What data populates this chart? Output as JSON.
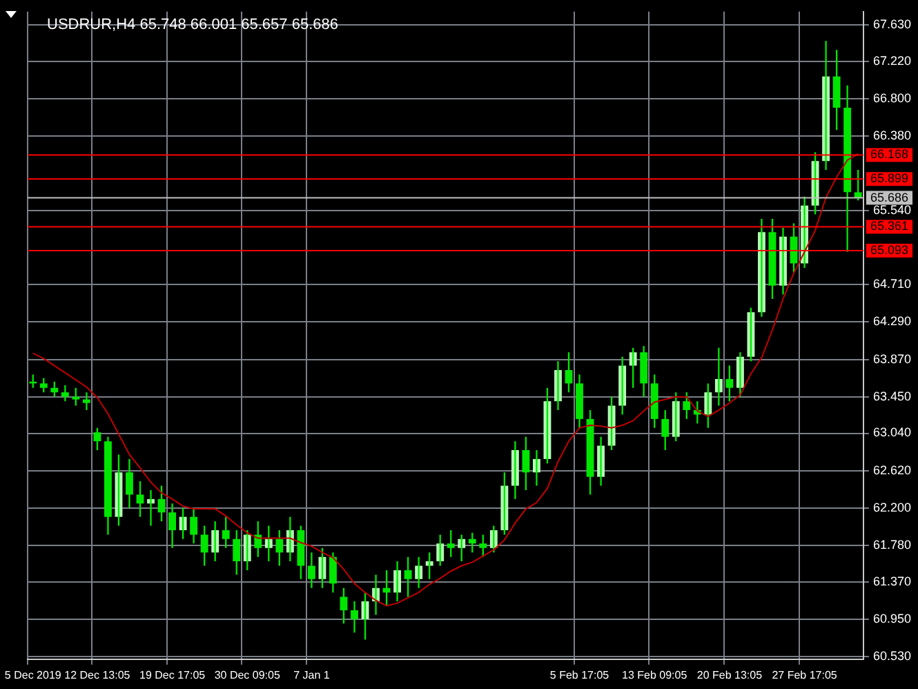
{
  "chart_data": {
    "type": "candlestick",
    "title": "USDRUR,H4 65.748 66.001 65.657 65.686",
    "categories": [
      "5 Dec 2019",
      null,
      null,
      null,
      null,
      null,
      "12 Dec 13:05",
      null,
      null,
      null,
      null,
      null,
      null,
      "19 Dec 17:05",
      null,
      null,
      null,
      null,
      null,
      null,
      "30 Dec 09:05",
      null,
      null,
      null,
      null,
      null,
      "7 Jan 1",
      null,
      null,
      null,
      null,
      null,
      null,
      null,
      null,
      null,
      null,
      null,
      null,
      null,
      null,
      null,
      null,
      null,
      null,
      null,
      null,
      null,
      null,
      null,
      null,
      "5 Feb 17:05",
      null,
      null,
      null,
      null,
      null,
      null,
      "13 Feb 09:05",
      null,
      null,
      null,
      null,
      null,
      null,
      "20 Feb 13:05",
      null,
      null,
      null,
      null,
      null,
      null,
      "27 Feb 17:05",
      null,
      null,
      null,
      null,
      null
    ],
    "series": [
      {
        "type": "candlestick",
        "color": "#00e600",
        "colors": [
          "#00e600",
          "#00e600",
          "#00e600",
          "#00e600",
          "#00e600",
          "#00e600",
          "#00e600",
          "#00e600",
          "#b3ffb3",
          "#00e600",
          "#00e600",
          "#b3ffb3",
          "#00e600",
          "#00e600",
          "#b3ffb3",
          "#00e600",
          "#00e600",
          "#b3ffb3",
          "#00e600",
          "#00e600",
          "#b3ffb3",
          "#00e600",
          "#b3ffb3",
          "#00e600",
          "#b3ffb3",
          "#00e600",
          "#00e600",
          "#b3ffb3",
          "#00e600",
          "#00e600",
          "#00e600",
          "#b3ffb3",
          "#b3ffb3",
          "#00e600",
          "#b3ffb3",
          "#00e600",
          "#b3ffb3",
          "#b3ffb3",
          "#b3ffb3",
          "#00e600",
          "#b3ffb3",
          "#00e600",
          "#00e600",
          "#b3ffb3",
          "#b3ffb3",
          "#b3ffb3",
          "#00e600",
          "#b3ffb3",
          "#b3ffb3",
          "#b3ffb3",
          "#00e600",
          "#00e600",
          "#00e600",
          "#b3ffb3",
          "#b3ffb3",
          "#b3ffb3",
          "#b3ffb3",
          "#00e600",
          "#00e600",
          "#00e600",
          "#b3ffb3",
          "#00e600",
          "#00e600",
          "#b3ffb3",
          "#b3ffb3",
          "#00e600",
          "#b3ffb3",
          "#b3ffb3",
          "#b3ffb3",
          "#00e600",
          "#b3ffb3",
          "#00e600",
          "#b3ffb3",
          "#b3ffb3",
          "#b3ffb3",
          "#00e600",
          "#00e600",
          "#00e600"
        ],
        "ohlc": [
          [
            63.62,
            63.7,
            63.55,
            63.6
          ],
          [
            63.6,
            63.66,
            63.5,
            63.55
          ],
          [
            63.55,
            63.62,
            63.45,
            63.5
          ],
          [
            63.5,
            63.58,
            63.4,
            63.45
          ],
          [
            63.45,
            63.55,
            63.35,
            63.42
          ],
          [
            63.42,
            63.5,
            63.3,
            63.38
          ],
          [
            63.05,
            63.1,
            62.85,
            62.95
          ],
          [
            62.95,
            63.0,
            61.9,
            62.1
          ],
          [
            62.1,
            62.8,
            62.0,
            62.6
          ],
          [
            62.6,
            62.75,
            62.2,
            62.35
          ],
          [
            62.35,
            62.5,
            62.1,
            62.25
          ],
          [
            62.25,
            62.4,
            62.0,
            62.3
          ],
          [
            62.3,
            62.45,
            62.05,
            62.15
          ],
          [
            62.15,
            62.25,
            61.75,
            61.95
          ],
          [
            61.95,
            62.2,
            61.85,
            62.1
          ],
          [
            62.1,
            62.2,
            61.8,
            61.9
          ],
          [
            61.9,
            62.0,
            61.55,
            61.7
          ],
          [
            61.7,
            62.05,
            61.6,
            61.95
          ],
          [
            61.95,
            62.1,
            61.75,
            61.85
          ],
          [
            61.85,
            61.95,
            61.45,
            61.6
          ],
          [
            61.6,
            61.95,
            61.5,
            61.9
          ],
          [
            61.9,
            62.05,
            61.65,
            61.75
          ],
          [
            61.75,
            62.0,
            61.6,
            61.85
          ],
          [
            61.85,
            61.95,
            61.55,
            61.7
          ],
          [
            61.7,
            62.1,
            61.6,
            61.95
          ],
          [
            61.95,
            62.0,
            61.4,
            61.55
          ],
          [
            61.55,
            61.7,
            61.3,
            61.4
          ],
          [
            61.4,
            61.75,
            61.3,
            61.65
          ],
          [
            61.65,
            61.7,
            61.25,
            61.35
          ],
          [
            61.2,
            61.3,
            60.9,
            61.05
          ],
          [
            61.05,
            61.15,
            60.8,
            60.95
          ],
          [
            60.95,
            61.25,
            60.72,
            61.15
          ],
          [
            61.15,
            61.45,
            61.0,
            61.3
          ],
          [
            61.3,
            61.5,
            61.1,
            61.25
          ],
          [
            61.25,
            61.6,
            61.15,
            61.5
          ],
          [
            61.5,
            61.65,
            61.2,
            61.4
          ],
          [
            61.4,
            61.65,
            61.3,
            61.55
          ],
          [
            61.55,
            61.7,
            61.4,
            61.6
          ],
          [
            61.6,
            61.9,
            61.55,
            61.8
          ],
          [
            61.8,
            61.95,
            61.65,
            61.75
          ],
          [
            61.75,
            61.9,
            61.6,
            61.85
          ],
          [
            61.85,
            61.92,
            61.7,
            61.8
          ],
          [
            61.8,
            61.9,
            61.65,
            61.75
          ],
          [
            61.75,
            62.0,
            61.7,
            61.95
          ],
          [
            61.95,
            62.6,
            61.9,
            62.45
          ],
          [
            62.45,
            62.95,
            62.3,
            62.85
          ],
          [
            62.85,
            63.0,
            62.4,
            62.6
          ],
          [
            62.6,
            62.85,
            62.45,
            62.75
          ],
          [
            62.75,
            63.55,
            62.7,
            63.4
          ],
          [
            63.4,
            63.85,
            63.3,
            63.75
          ],
          [
            63.75,
            63.95,
            63.5,
            63.6
          ],
          [
            63.6,
            63.7,
            63.1,
            63.2
          ],
          [
            63.2,
            63.3,
            62.35,
            62.55
          ],
          [
            62.55,
            63.0,
            62.45,
            62.9
          ],
          [
            62.9,
            63.45,
            62.85,
            63.35
          ],
          [
            63.35,
            63.9,
            63.25,
            63.8
          ],
          [
            63.8,
            64.0,
            63.55,
            63.95
          ],
          [
            63.95,
            64.02,
            63.45,
            63.6
          ],
          [
            63.6,
            63.7,
            63.1,
            63.2
          ],
          [
            63.2,
            63.3,
            62.85,
            63.0
          ],
          [
            63.0,
            63.5,
            62.95,
            63.4
          ],
          [
            63.4,
            63.5,
            63.2,
            63.3
          ],
          [
            63.3,
            63.4,
            63.15,
            63.25
          ],
          [
            63.25,
            63.6,
            63.1,
            63.5
          ],
          [
            63.5,
            64.0,
            63.35,
            63.65
          ],
          [
            63.65,
            63.8,
            63.4,
            63.55
          ],
          [
            63.55,
            63.95,
            63.45,
            63.9
          ],
          [
            63.9,
            64.45,
            63.85,
            64.4
          ],
          [
            64.4,
            65.45,
            64.35,
            65.3
          ],
          [
            65.3,
            65.45,
            64.55,
            64.7
          ],
          [
            64.7,
            65.35,
            64.6,
            65.25
          ],
          [
            65.25,
            65.4,
            64.85,
            64.95
          ],
          [
            64.95,
            65.7,
            64.9,
            65.6
          ],
          [
            65.6,
            66.2,
            65.5,
            66.1
          ],
          [
            66.1,
            67.45,
            66.0,
            67.05
          ],
          [
            67.05,
            67.35,
            66.45,
            66.7
          ],
          [
            66.7,
            66.95,
            65.08,
            65.75
          ],
          [
            65.748,
            66.001,
            65.657,
            65.686
          ]
        ]
      },
      {
        "type": "line",
        "color": "#c00000",
        "values": [
          63.94,
          63.88,
          63.8,
          63.72,
          63.64,
          63.56,
          63.44,
          63.26,
          63.03,
          62.8,
          62.65,
          62.49,
          62.37,
          62.3,
          62.22,
          62.19,
          62.19,
          62.19,
          62.11,
          62.01,
          61.92,
          61.86,
          61.86,
          61.86,
          61.86,
          61.81,
          61.77,
          61.7,
          61.64,
          61.51,
          61.35,
          61.25,
          61.16,
          61.1,
          61.13,
          61.19,
          61.25,
          61.34,
          61.41,
          61.49,
          61.55,
          61.59,
          61.66,
          61.73,
          61.84,
          62.03,
          62.19,
          62.26,
          62.42,
          62.72,
          62.95,
          63.1,
          63.13,
          63.12,
          63.1,
          63.13,
          63.18,
          63.29,
          63.39,
          63.42,
          63.45,
          63.45,
          63.29,
          63.23,
          63.3,
          63.38,
          63.47,
          63.71,
          63.89,
          64.2,
          64.55,
          64.84,
          65.08,
          65.32,
          65.69,
          65.92,
          66.11,
          66.18
        ]
      }
    ],
    "ylim": [
      60.5,
      67.78
    ],
    "yticks": [
      {
        "value": 67.63,
        "label": "67.630"
      },
      {
        "value": 67.22,
        "label": "67.220"
      },
      {
        "value": 66.8,
        "label": "66.800"
      },
      {
        "value": 66.38,
        "label": "66.380"
      },
      {
        "value": 65.54,
        "label": "65.540"
      },
      {
        "value": 64.71,
        "label": "64.710"
      },
      {
        "value": 64.29,
        "label": "64.290"
      },
      {
        "value": 63.87,
        "label": "63.870"
      },
      {
        "value": 63.45,
        "label": "63.450"
      },
      {
        "value": 63.04,
        "label": "63.040"
      },
      {
        "value": 62.62,
        "label": "62.620"
      },
      {
        "value": 62.2,
        "label": "62.200"
      },
      {
        "value": 61.78,
        "label": "61.780"
      },
      {
        "value": 61.37,
        "label": "61.370"
      },
      {
        "value": 60.95,
        "label": "60.950"
      },
      {
        "value": 60.53,
        "label": "60.530"
      }
    ],
    "ref_lines": [
      {
        "axis": "y",
        "value": 66.168,
        "label": "66.168",
        "color": "#ff0000"
      },
      {
        "axis": "y",
        "value": 65.899,
        "label": "65.899",
        "color": "#ff0000"
      },
      {
        "axis": "y",
        "value": 65.686,
        "label": "65.686",
        "color": "#c0c0c0"
      },
      {
        "axis": "y",
        "value": 65.361,
        "label": "65.361",
        "color": "#ff0000"
      },
      {
        "axis": "y",
        "value": 65.093,
        "label": "65.093",
        "color": "#ff0000"
      }
    ],
    "grid": true,
    "legend": false
  }
}
